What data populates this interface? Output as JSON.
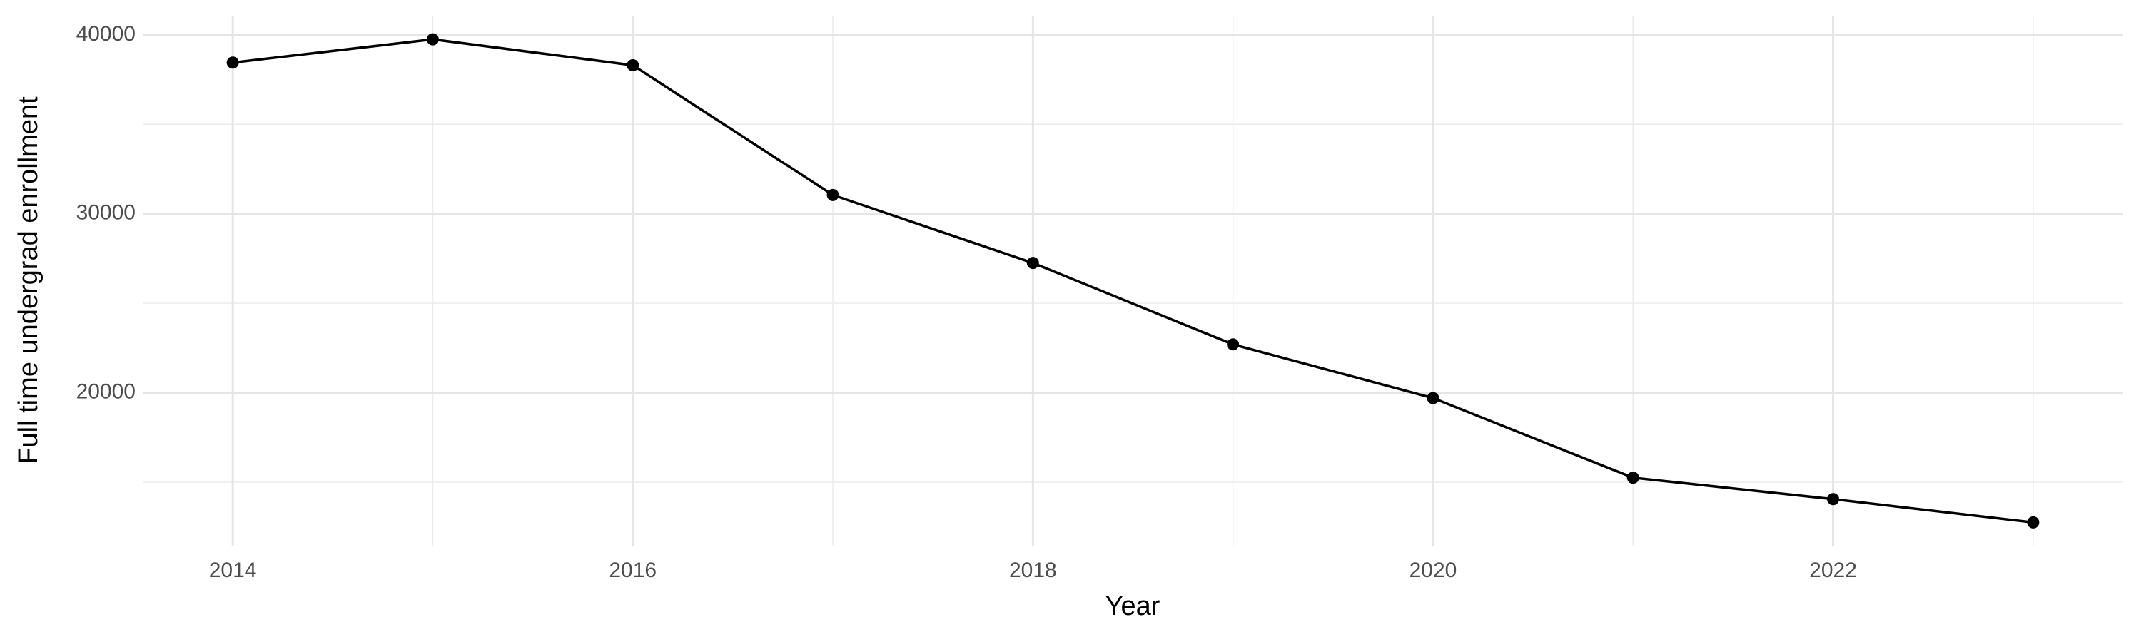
{
  "chart_data": {
    "type": "line",
    "x_label": "Year",
    "y_label": "Full time undergrad enrollment",
    "x": [
      2014,
      2015,
      2016,
      2017,
      2018,
      2019,
      2020,
      2021,
      2022,
      2023
    ],
    "series": [
      {
        "color": "#000000",
        "values": [
          38450,
          39750,
          38300,
          31050,
          27250,
          22700,
          19700,
          15250,
          14050,
          12750
        ]
      }
    ],
    "xlim": [
      2013.55,
      2023.45
    ],
    "xticks": [
      2014,
      2016,
      2018,
      2020,
      2022
    ],
    "x_minor_ticks": [
      2015,
      2017,
      2019,
      2021,
      2023
    ],
    "ylim": [
      11450,
      41070
    ],
    "yticks": [
      20000,
      30000,
      40000
    ],
    "y_minor_ticks": [
      15000,
      25000,
      35000
    ],
    "grid": true
  }
}
